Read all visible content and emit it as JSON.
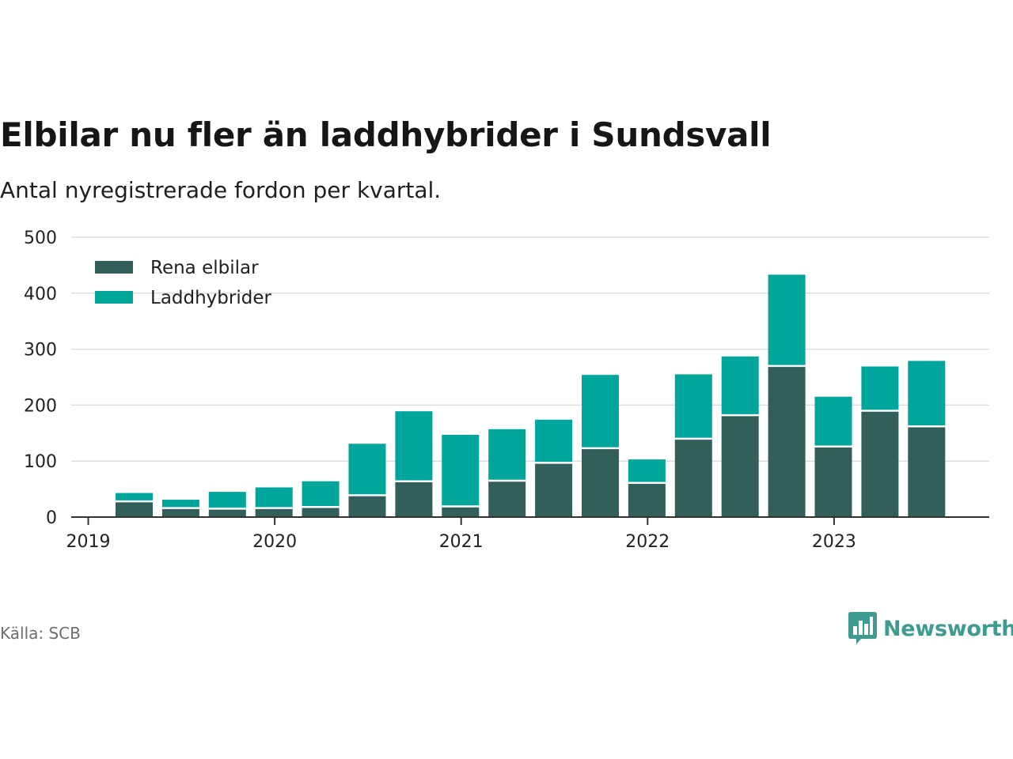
{
  "header": {
    "title": "Elbilar nu fler än laddhybrider i Sundsvall",
    "subtitle": "Antal nyregistrerade fordon per kvartal."
  },
  "footer": {
    "source": "Källa: SCB",
    "brand": "Newsworthy"
  },
  "colors": {
    "rena_elbilar": "#335f5b",
    "laddhybrider": "#00a59b",
    "grid": "#dddddd",
    "axis": "#333333",
    "brand": "#3f9a8f"
  },
  "icons": {
    "brand_logo": "bar-chart-speech-bubble-icon"
  },
  "chart_data": {
    "type": "bar",
    "stacked": true,
    "title": "Elbilar nu fler än laddhybrider i Sundsvall",
    "subtitle": "Antal nyregistrerade fordon per kvartal.",
    "xlabel": "",
    "ylabel": "",
    "ylim": [
      0,
      500
    ],
    "yticks": [
      0,
      100,
      200,
      300,
      400,
      500
    ],
    "x_tick_labels": [
      "2019",
      "2020",
      "2021",
      "2022",
      "2023"
    ],
    "grid": true,
    "legend_position": "top-left",
    "categories": [
      "2019 K2",
      "2019 K3",
      "2019 K4",
      "2020 K1",
      "2020 K2",
      "2020 K3",
      "2020 K4",
      "2021 K1",
      "2021 K2",
      "2021 K3",
      "2021 K4",
      "2022 K1",
      "2022 K2",
      "2022 K3",
      "2022 K4",
      "2023 K1",
      "2023 K2",
      "2023 K3"
    ],
    "series": [
      {
        "name": "Rena elbilar",
        "values": [
          28,
          16,
          15,
          16,
          18,
          39,
          64,
          19,
          65,
          97,
          123,
          61,
          140,
          182,
          270,
          126,
          190,
          162
        ]
      },
      {
        "name": "Laddhybrider",
        "values": [
          15,
          15,
          30,
          37,
          46,
          92,
          125,
          128,
          92,
          77,
          131,
          42,
          115,
          105,
          163,
          89,
          79,
          117
        ]
      }
    ]
  }
}
